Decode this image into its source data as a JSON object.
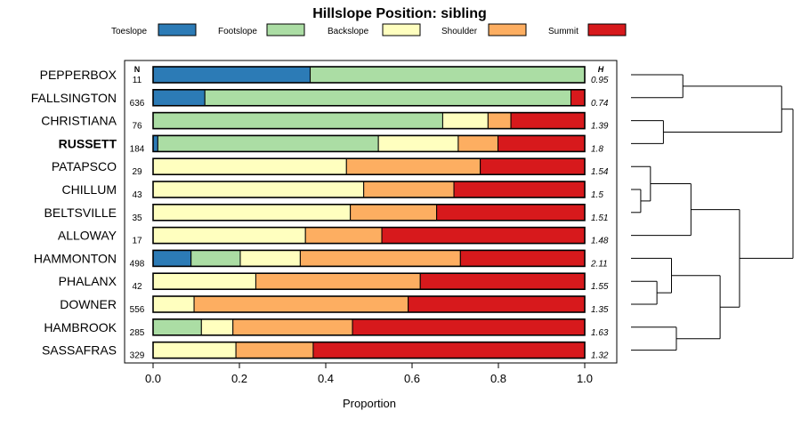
{
  "chart_data": {
    "type": "bar",
    "orientation": "horizontal",
    "stacked": true,
    "title": "Hillslope Position: sibling",
    "xlabel": "Proportion",
    "ylabel": "",
    "xlim": [
      0,
      1
    ],
    "xticks": [
      "0.0",
      "0.2",
      "0.4",
      "0.6",
      "0.8",
      "1.0"
    ],
    "n_header": "N",
    "h_header": "H",
    "legend_position": "top",
    "series": [
      {
        "name": "Toeslope",
        "color": "#2c7bb6"
      },
      {
        "name": "Footslope",
        "color": "#abdda4"
      },
      {
        "name": "Backslope",
        "color": "#ffffbf"
      },
      {
        "name": "Shoulder",
        "color": "#fdae61"
      },
      {
        "name": "Summit",
        "color": "#d7191c"
      }
    ],
    "categories": [
      "PEPPERBOX",
      "FALLSINGTON",
      "CHRISTIANA",
      "RUSSETT",
      "PATAPSCO",
      "CHILLUM",
      "BELTSVILLE",
      "ALLOWAY",
      "HAMMONTON",
      "PHALANX",
      "DOWNER",
      "HAMBROOK",
      "SASSAFRAS"
    ],
    "highlight": "RUSSETT",
    "n": [
      "11",
      "636",
      "76",
      "184",
      "29",
      "43",
      "35",
      "17",
      "498",
      "42",
      "556",
      "285",
      "329"
    ],
    "h": [
      "0.95",
      "0.74",
      "1.39",
      "1.8",
      "1.54",
      "1.5",
      "1.51",
      "1.48",
      "2.11",
      "1.55",
      "1.35",
      "1.63",
      "1.32"
    ],
    "values": [
      [
        0.364,
        0.636,
        0,
        0,
        0
      ],
      [
        0.12,
        0.848,
        0,
        0,
        0.032
      ],
      [
        0,
        0.671,
        0.105,
        0.053,
        0.171
      ],
      [
        0.011,
        0.511,
        0.185,
        0.092,
        0.201
      ],
      [
        0,
        0,
        0.448,
        0.31,
        0.242
      ],
      [
        0,
        0,
        0.488,
        0.209,
        0.303
      ],
      [
        0,
        0,
        0.457,
        0.2,
        0.343
      ],
      [
        0,
        0,
        0.353,
        0.177,
        0.47
      ],
      [
        0.088,
        0.114,
        0.139,
        0.371,
        0.288
      ],
      [
        0,
        0,
        0.238,
        0.381,
        0.381
      ],
      [
        0,
        0,
        0.095,
        0.496,
        0.409
      ],
      [
        0,
        0.112,
        0.073,
        0.277,
        0.538
      ],
      [
        0,
        0,
        0.192,
        0.179,
        0.629
      ]
    ],
    "dendrogram": {
      "leaves": [
        "PEPPERBOX",
        "FALLSINGTON",
        "CHRISTIANA",
        "RUSSETT",
        "PATAPSCO",
        "CHILLUM",
        "BELTSVILLE",
        "ALLOWAY",
        "HAMMONTON",
        "PHALANX",
        "DOWNER",
        "HAMBROOK",
        "SASSAFRAS"
      ],
      "merges": [
        [
          5,
          6,
          0.06
        ],
        [
          -1,
          4,
          0.12
        ],
        [
          9,
          10,
          0.16
        ],
        [
          -3,
          8,
          0.25
        ],
        [
          11,
          12,
          0.28
        ],
        [
          2,
          3,
          0.2
        ],
        [
          0,
          1,
          0.32
        ],
        [
          -2,
          7,
          0.37
        ],
        [
          -4,
          -5,
          0.55
        ],
        [
          -8,
          -9,
          0.67
        ],
        [
          -7,
          -6,
          0.93
        ],
        [
          -11,
          -10,
          1.0
        ]
      ]
    }
  }
}
